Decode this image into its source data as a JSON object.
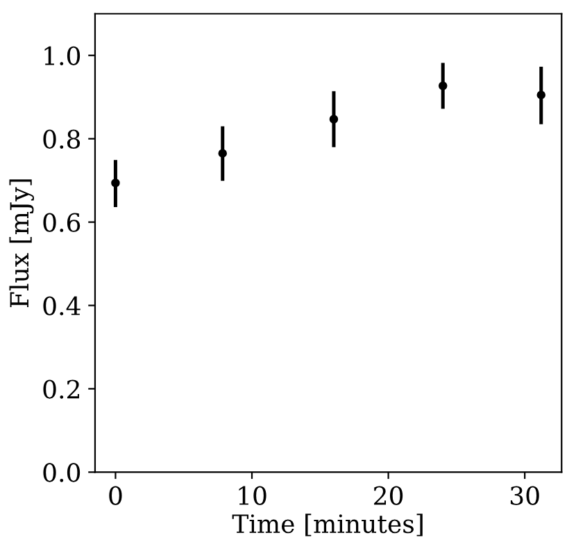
{
  "chart_data": {
    "type": "scatter",
    "xlabel": "Time [minutes]",
    "ylabel": "Flux [mJy]",
    "x": [
      0,
      7.85,
      16.0,
      24.0,
      31.2
    ],
    "values": [
      0.694,
      0.765,
      0.847,
      0.927,
      0.905
    ],
    "errors": [
      [
        0.636,
        0.749
      ],
      [
        0.699,
        0.83
      ],
      [
        0.78,
        0.914
      ],
      [
        0.872,
        0.982
      ],
      [
        0.835,
        0.973
      ]
    ],
    "color": "#000000",
    "marker": "circle",
    "grid": false,
    "legend": false,
    "xlim": [
      -1.5,
      32.7
    ],
    "ylim": [
      0,
      1.1
    ],
    "xticks": [
      0,
      10,
      20,
      30
    ],
    "yticks": [
      {
        "value": 0,
        "label": "0.0"
      },
      0.2,
      0.4,
      0.6,
      0.8,
      {
        "value": 1,
        "label": "1.0"
      }
    ]
  }
}
